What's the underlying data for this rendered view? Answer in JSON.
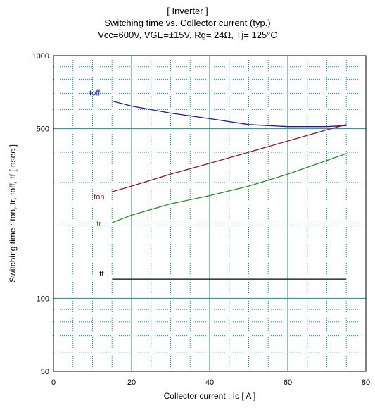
{
  "chart_data": {
    "type": "line",
    "title": "[ Inverter ]",
    "subtitle": "Switching time  vs.  Collector current  (typ.)",
    "conditions": "Vcc=600V, VGE=±15V, Rg= 24Ω, Tj= 125°C",
    "xlabel": "Collector current  :  Ic  [ A ]",
    "ylabel": "Switching time  :  ton, tr, toff, tf  [ nsec ]",
    "xlim": [
      0,
      80
    ],
    "ylim": [
      50,
      1000
    ],
    "yscale": "log",
    "grid": true,
    "x_ticks": [
      "0",
      "20",
      "40",
      "60",
      "80"
    ],
    "y_ticks": [
      "50",
      "100",
      "500",
      "1000"
    ],
    "series": [
      {
        "name": "toff",
        "color": "#1a1a9a",
        "x": [
          15,
          20,
          30,
          40,
          50,
          60,
          70,
          75
        ],
        "y": [
          650,
          620,
          580,
          550,
          520,
          510,
          510,
          515
        ]
      },
      {
        "name": "ton",
        "color": "#8b1a1a",
        "x": [
          15,
          20,
          30,
          40,
          50,
          60,
          70,
          75
        ],
        "y": [
          275,
          290,
          325,
          360,
          400,
          445,
          495,
          520
        ]
      },
      {
        "name": "tr",
        "color": "#2a8a2a",
        "x": [
          15,
          20,
          30,
          40,
          50,
          60,
          70,
          75
        ],
        "y": [
          205,
          220,
          245,
          265,
          290,
          325,
          370,
          395
        ]
      },
      {
        "name": "tf",
        "color": "#000000",
        "x": [
          15,
          75
        ],
        "y": [
          120,
          120
        ]
      }
    ]
  }
}
